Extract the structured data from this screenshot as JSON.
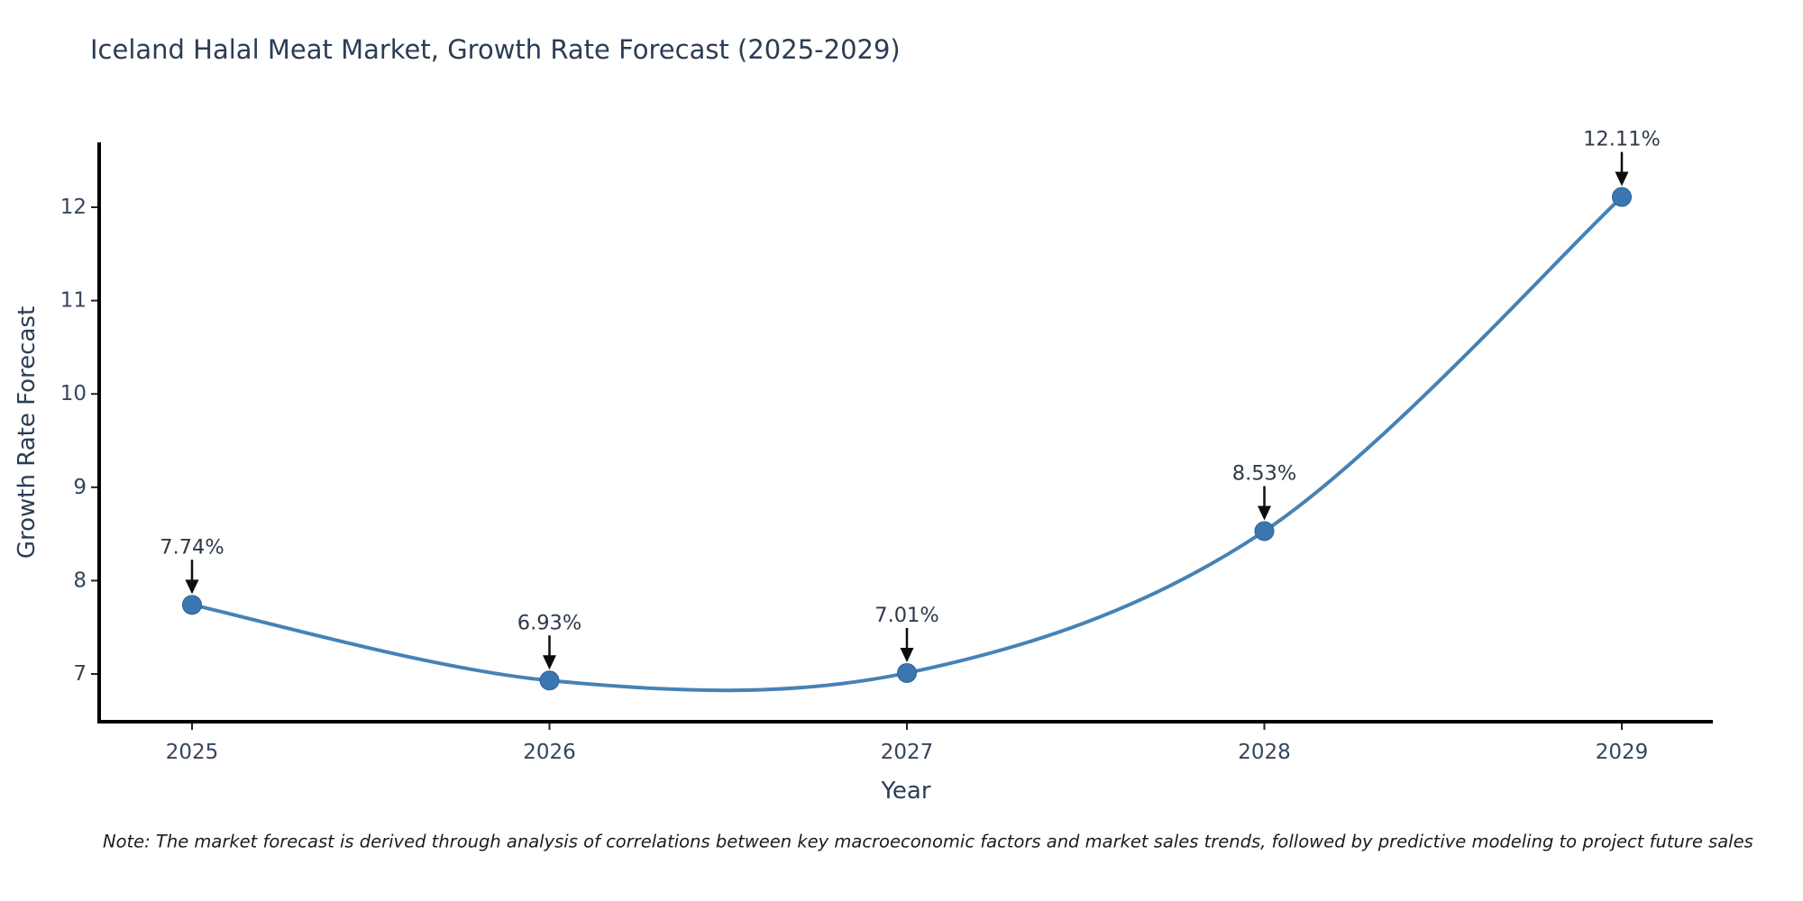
{
  "chart": {
    "title": "Iceland Halal Meat Market, Growth Rate Forecast (2025-2029)",
    "xlabel": "Year",
    "ylabel": "Growth Rate Forecast",
    "note": "Note: The market forecast is derived through analysis of correlations between key macroeconomic factors and market sales trends, followed by predictive modeling to project future sales"
  },
  "chart_data": {
    "type": "line",
    "title": "Iceland Halal Meat Market, Growth Rate Forecast (2025-2029)",
    "xlabel": "Year",
    "ylabel": "Growth Rate Forecast",
    "x": [
      2025,
      2026,
      2027,
      2028,
      2029
    ],
    "values": [
      7.74,
      6.93,
      7.01,
      8.53,
      12.11
    ],
    "point_labels": [
      "7.74%",
      "6.93%",
      "7.01%",
      "8.53%",
      "12.11%"
    ],
    "yticks": [
      7,
      8,
      9,
      10,
      11,
      12
    ],
    "ylim": [
      6.5,
      12.6
    ],
    "grid": false,
    "legend": "none",
    "smooth": true,
    "line_color": "#4682b4",
    "marker_color": "#3a76b0",
    "marker_edge_color": "#2e6194",
    "arrow_color": "#0d0d0d",
    "axis_color": "#000000",
    "note": "Note: The market forecast is derived through analysis of correlations between key macroeconomic factors and market sales trends, followed by predictive modeling to project future sales"
  }
}
